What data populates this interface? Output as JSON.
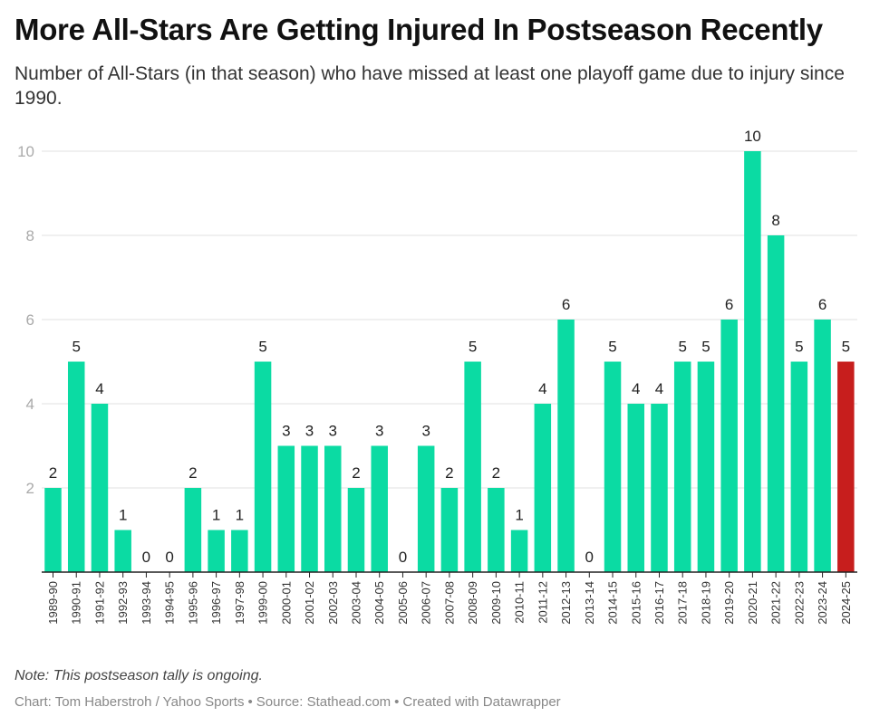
{
  "header": {
    "title": "More All-Stars Are Getting Injured In Postseason Recently",
    "subtitle": "Number of All-Stars (in that season) who have missed at least one playoff game due to injury since 1990."
  },
  "footer": {
    "note": "Note: This postseason tally is ongoing.",
    "chart_credit": "Chart: Tom Haberstroh / Yahoo Sports",
    "source": "Source: Stathead.com",
    "created_with": "Created with Datawrapper",
    "separator": "•"
  },
  "colors": {
    "bar": "#0BDBA3",
    "highlight_bar": "#C71E1D",
    "grid": "#E0E0E0",
    "axis": "#222222",
    "tick_label": "#AAAAAA"
  },
  "chart_data": {
    "type": "bar",
    "title": "More All-Stars Are Getting Injured In Postseason Recently",
    "xlabel": "",
    "ylabel": "",
    "ylim": [
      0,
      10
    ],
    "yticks": [
      2,
      4,
      6,
      8,
      10
    ],
    "grid": true,
    "legend": "none",
    "highlight": "2024-25",
    "categories": [
      "1989-90",
      "1990-91",
      "1991-92",
      "1992-93",
      "1993-94",
      "1994-95",
      "1995-96",
      "1996-97",
      "1997-98",
      "1999-00",
      "2000-01",
      "2001-02",
      "2002-03",
      "2003-04",
      "2004-05",
      "2005-06",
      "2006-07",
      "2007-08",
      "2008-09",
      "2009-10",
      "2010-11",
      "2011-12",
      "2012-13",
      "2013-14",
      "2014-15",
      "2015-16",
      "2016-17",
      "2017-18",
      "2018-19",
      "2019-20",
      "2020-21",
      "2021-22",
      "2022-23",
      "2023-24",
      "2024-25"
    ],
    "values": [
      2,
      5,
      4,
      1,
      0,
      0,
      2,
      1,
      1,
      5,
      3,
      3,
      3,
      2,
      3,
      0,
      3,
      2,
      5,
      2,
      1,
      4,
      6,
      0,
      5,
      4,
      4,
      5,
      5,
      6,
      10,
      8,
      5,
      6,
      5
    ]
  }
}
